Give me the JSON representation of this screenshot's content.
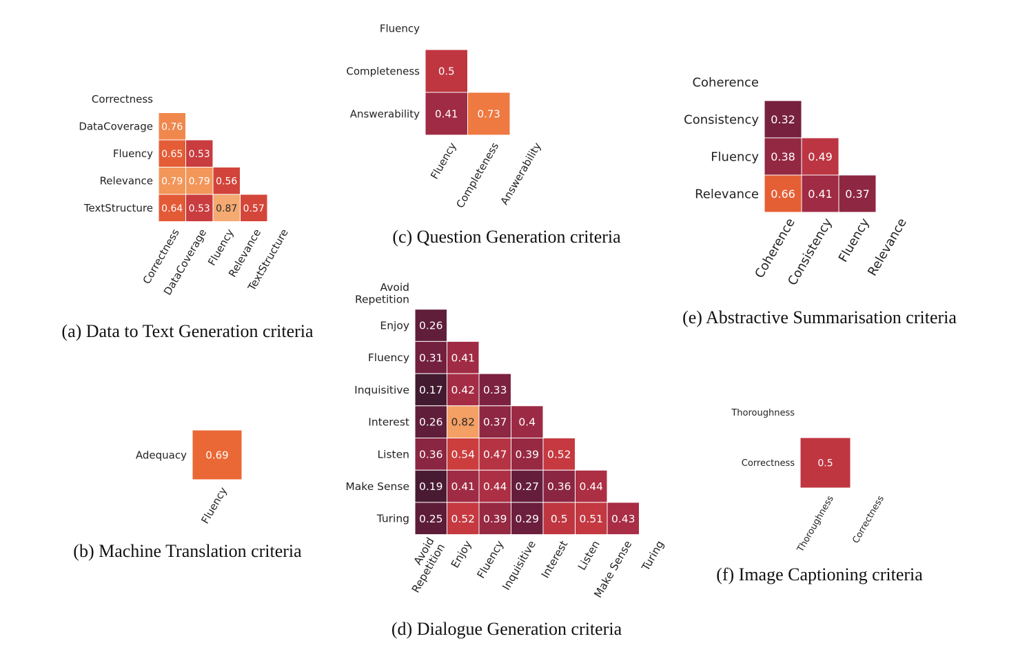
{
  "color_scale": {
    "stops": [
      {
        "v": 0.15,
        "color": "#3b1a2e"
      },
      {
        "v": 0.3,
        "color": "#6e1f3e"
      },
      {
        "v": 0.42,
        "color": "#a52c45"
      },
      {
        "v": 0.52,
        "color": "#c63940"
      },
      {
        "v": 0.6,
        "color": "#dd4e36"
      },
      {
        "v": 0.7,
        "color": "#eb6b35"
      },
      {
        "v": 0.8,
        "color": "#f49b5e"
      },
      {
        "v": 0.9,
        "color": "#f6b07a"
      }
    ]
  },
  "chart_data": [
    {
      "id": "a",
      "type": "heatmap",
      "title": "(a) Data to Text Generation criteria",
      "labels": [
        "Correctness",
        "DataCoverage",
        "Fluency",
        "Relevance",
        "TextStructure"
      ],
      "matrix": [
        [
          null,
          null,
          null,
          null,
          null
        ],
        [
          0.76,
          null,
          null,
          null,
          null
        ],
        [
          0.65,
          0.53,
          null,
          null,
          null
        ],
        [
          0.79,
          0.79,
          0.56,
          null,
          null
        ],
        [
          0.64,
          0.53,
          0.87,
          0.57,
          null
        ]
      ]
    },
    {
      "id": "b",
      "type": "heatmap",
      "title": "(b) Machine Translation criteria",
      "row_labels": [
        "Adequacy"
      ],
      "col_labels": [
        "Fluency"
      ],
      "matrix": [
        [
          0.69
        ]
      ]
    },
    {
      "id": "c",
      "type": "heatmap",
      "title": "(c) Question Generation criteria",
      "labels": [
        "Fluency",
        "Completeness",
        "Answerability"
      ],
      "matrix": [
        [
          null,
          null,
          null
        ],
        [
          0.5,
          null,
          null
        ],
        [
          0.41,
          0.73,
          null
        ]
      ]
    },
    {
      "id": "d",
      "type": "heatmap",
      "title": "(d) Dialogue Generation criteria",
      "labels": [
        "Avoid\nRepetition",
        "Enjoy",
        "Fluency",
        "Inquisitive",
        "Interest",
        "Listen",
        "Make Sense",
        "Turing"
      ],
      "matrix": [
        [
          null,
          null,
          null,
          null,
          null,
          null,
          null,
          null
        ],
        [
          0.26,
          null,
          null,
          null,
          null,
          null,
          null,
          null
        ],
        [
          0.31,
          0.41,
          null,
          null,
          null,
          null,
          null,
          null
        ],
        [
          0.17,
          0.42,
          0.33,
          null,
          null,
          null,
          null,
          null
        ],
        [
          0.26,
          0.82,
          0.37,
          0.4,
          null,
          null,
          null,
          null
        ],
        [
          0.36,
          0.54,
          0.47,
          0.39,
          0.52,
          null,
          null,
          null
        ],
        [
          0.19,
          0.41,
          0.44,
          0.27,
          0.36,
          0.44,
          null,
          null
        ],
        [
          0.25,
          0.52,
          0.39,
          0.29,
          0.5,
          0.51,
          0.43,
          null
        ]
      ]
    },
    {
      "id": "e",
      "type": "heatmap",
      "title": "(e) Abstractive Summarisation criteria",
      "labels": [
        "Coherence",
        "Consistency",
        "Fluency",
        "Relevance"
      ],
      "matrix": [
        [
          null,
          null,
          null,
          null
        ],
        [
          0.32,
          null,
          null,
          null
        ],
        [
          0.38,
          0.49,
          null,
          null
        ],
        [
          0.66,
          0.41,
          0.37,
          null
        ]
      ]
    },
    {
      "id": "f",
      "type": "heatmap",
      "title": "(f) Image Captioning criteria",
      "labels": [
        "Thoroughness",
        "Correctness"
      ],
      "matrix": [
        [
          null,
          null
        ],
        [
          0.5,
          null
        ]
      ]
    }
  ]
}
